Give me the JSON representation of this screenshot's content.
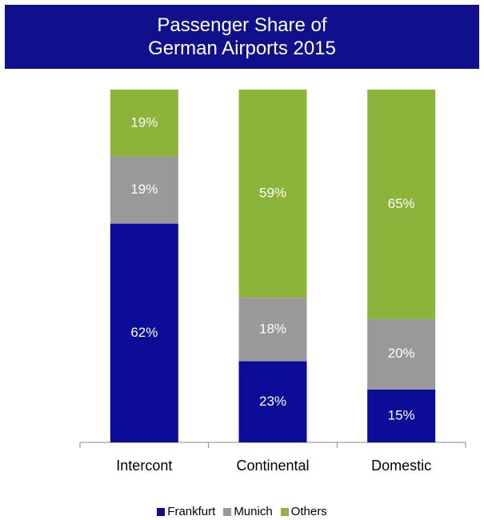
{
  "chart_data": {
    "type": "stacked_bar",
    "title": "Passenger Share of German Airports 2015",
    "categories": [
      "Intercont",
      "Continental",
      "Domestic"
    ],
    "series": [
      {
        "name": "Frankfurt",
        "color": "#0c0c99",
        "values": [
          62,
          23,
          15
        ],
        "value_labels": [
          "62%",
          "23%",
          "15%"
        ]
      },
      {
        "name": "Munich",
        "color": "#999999",
        "values": [
          19,
          18,
          20
        ],
        "value_labels": [
          "19%",
          "18%",
          "20%"
        ]
      },
      {
        "name": "Others",
        "color": "#8cb43a",
        "values": [
          19,
          59,
          65
        ],
        "value_labels": [
          "19%",
          "59%",
          "65%"
        ]
      }
    ],
    "ylim": [
      0,
      100
    ],
    "legend": "bottom"
  }
}
